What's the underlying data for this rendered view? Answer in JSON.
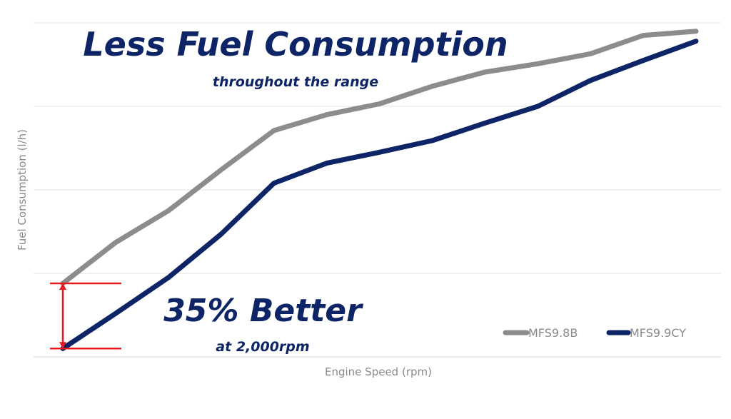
{
  "chart_data": {
    "type": "line",
    "title": "Less Fuel Consumption",
    "subtitle": "throughout the range",
    "xlabel": "Engine Speed (rpm)",
    "ylabel": "Fuel Consumption (l/h)",
    "grid": true,
    "ylim": [
      0,
      4
    ],
    "x": [
      1,
      2,
      3,
      4,
      5,
      6,
      7,
      8,
      9,
      10,
      11,
      12,
      13
    ],
    "series": [
      {
        "name": "MFS9.8B",
        "color": "#8c8c8c",
        "values": [
          0.88,
          1.37,
          1.75,
          2.24,
          2.71,
          2.9,
          3.03,
          3.24,
          3.41,
          3.51,
          3.63,
          3.85,
          3.9
        ]
      },
      {
        "name": "MFS9.9CY",
        "color": "#0d2466",
        "values": [
          0.1,
          0.52,
          0.95,
          1.47,
          2.08,
          2.32,
          2.45,
          2.59,
          2.8,
          3.0,
          3.31,
          3.55,
          3.78
        ]
      }
    ],
    "annotations": {
      "headline": "35% Better",
      "subline": "at 2,000rpm",
      "marker_color": "#e8191f"
    },
    "legend_position": "bottom-right"
  }
}
